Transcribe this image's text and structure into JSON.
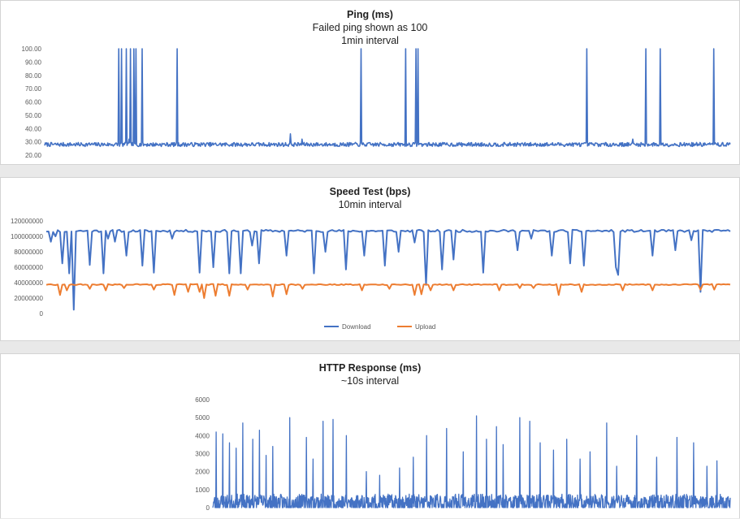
{
  "colors": {
    "download": "#4472C4",
    "upload": "#ED7D31",
    "axis_text": "#595959",
    "grid": "#d9d9d9"
  },
  "chart_data": [
    {
      "type": "line",
      "title": "Ping (ms)",
      "subtitle_lines": [
        "Failed ping shown as 100",
        "1min interval"
      ],
      "ylim": [
        20,
        100
      ],
      "yticks": [
        "100.00",
        "90.00",
        "80.00",
        "70.00",
        "60.00",
        "50.00",
        "40.00",
        "30.00",
        "20.00"
      ],
      "baseline": 28,
      "noise": 1.5,
      "n_points": 1000,
      "spikes": [
        {
          "at": 0.13,
          "value": 100
        },
        {
          "at": 0.134,
          "value": 100
        },
        {
          "at": 0.143,
          "value": 100
        },
        {
          "at": 0.15,
          "value": 100
        },
        {
          "at": 0.156,
          "value": 100
        },
        {
          "at": 0.16,
          "value": 100
        },
        {
          "at": 0.17,
          "value": 100
        },
        {
          "at": 0.232,
          "value": 100
        },
        {
          "at": 0.554,
          "value": 100
        },
        {
          "at": 0.632,
          "value": 100
        },
        {
          "at": 0.65,
          "value": 100
        },
        {
          "at": 0.653,
          "value": 100
        },
        {
          "at": 0.949,
          "value": 100
        },
        {
          "at": 1.052,
          "value": 100
        },
        {
          "at": 1.077,
          "value": 100
        },
        {
          "at": 1.171,
          "value": 100
        }
      ],
      "bumps": [
        {
          "at": 0.148,
          "value": 32
        },
        {
          "at": 0.43,
          "value": 36
        },
        {
          "at": 0.45,
          "value": 32
        },
        {
          "at": 1.03,
          "value": 32
        }
      ],
      "series": [
        {
          "color": "#4472C4"
        }
      ]
    },
    {
      "type": "line",
      "title": "Speed Test (bps)",
      "subtitle_lines": [
        "10min interval"
      ],
      "ylim": [
        0,
        120000000
      ],
      "yticks": [
        "120000000",
        "100000000",
        "80000000",
        "60000000",
        "40000000",
        "20000000",
        "0"
      ],
      "n_points": 300,
      "series": [
        {
          "name": "Download",
          "color": "#4472C4",
          "baseline": 107000000,
          "noise": 1500000,
          "dips": [
            {
              "at": 0.013,
              "value": 93000000
            },
            {
              "at": 0.024,
              "value": 100000000
            },
            {
              "at": 0.04,
              "value": 65000000
            },
            {
              "at": 0.056,
              "value": 52000000
            },
            {
              "at": 0.066,
              "value": 5000000
            },
            {
              "at": 0.104,
              "value": 63000000
            },
            {
              "at": 0.132,
              "value": 52000000
            },
            {
              "at": 0.144,
              "value": 97000000
            },
            {
              "at": 0.16,
              "value": 93000000
            },
            {
              "at": 0.188,
              "value": 75000000
            },
            {
              "at": 0.227,
              "value": 62000000
            },
            {
              "at": 0.25,
              "value": 53000000
            },
            {
              "at": 0.294,
              "value": 97000000
            },
            {
              "at": 0.356,
              "value": 53000000
            },
            {
              "at": 0.39,
              "value": 60000000
            },
            {
              "at": 0.43,
              "value": 52000000
            },
            {
              "at": 0.455,
              "value": 52000000
            },
            {
              "at": 0.48,
              "value": 88000000
            },
            {
              "at": 0.5,
              "value": 65000000
            },
            {
              "at": 0.56,
              "value": 75000000
            },
            {
              "at": 0.625,
              "value": 52000000
            },
            {
              "at": 0.652,
              "value": 80000000
            },
            {
              "at": 0.7,
              "value": 57000000
            },
            {
              "at": 0.745,
              "value": 75000000
            },
            {
              "at": 0.79,
              "value": 62000000
            },
            {
              "at": 0.825,
              "value": 80000000
            },
            {
              "at": 0.86,
              "value": 92000000
            },
            {
              "at": 0.89,
              "value": 37000000
            },
            {
              "at": 0.925,
              "value": 57000000
            },
            {
              "at": 0.955,
              "value": 70000000
            },
            {
              "at": 1.02,
              "value": 53000000
            },
            {
              "at": 1.1,
              "value": 82000000
            },
            {
              "at": 1.136,
              "value": 97000000
            },
            {
              "at": 1.183,
              "value": 75000000
            },
            {
              "at": 1.225,
              "value": 65000000
            },
            {
              "at": 1.256,
              "value": 62000000
            },
            {
              "at": 1.33,
              "value": 60000000
            },
            {
              "at": 1.34,
              "value": 50000000
            },
            {
              "at": 1.42,
              "value": 75000000
            },
            {
              "at": 1.47,
              "value": 82000000
            },
            {
              "at": 1.51,
              "value": 95000000
            },
            {
              "at": 1.53,
              "value": 28000000
            }
          ]
        },
        {
          "name": "Upload",
          "color": "#ED7D31",
          "baseline": 37500000,
          "noise": 700000,
          "dips": [
            {
              "at": 0.03,
              "value": 24000000
            },
            {
              "at": 0.05,
              "value": 30000000
            },
            {
              "at": 0.1,
              "value": 32000000
            },
            {
              "at": 0.14,
              "value": 30000000
            },
            {
              "at": 0.18,
              "value": 33000000
            },
            {
              "at": 0.25,
              "value": 31000000
            },
            {
              "at": 0.3,
              "value": 24000000
            },
            {
              "at": 0.33,
              "value": 28000000
            },
            {
              "at": 0.36,
              "value": 28000000
            },
            {
              "at": 0.37,
              "value": 20000000
            },
            {
              "at": 0.395,
              "value": 23000000
            },
            {
              "at": 0.43,
              "value": 23000000
            },
            {
              "at": 0.47,
              "value": 31000000
            },
            {
              "at": 0.53,
              "value": 22000000
            },
            {
              "at": 0.56,
              "value": 25000000
            },
            {
              "at": 0.6,
              "value": 32000000
            },
            {
              "at": 0.74,
              "value": 30000000
            },
            {
              "at": 0.8,
              "value": 32000000
            },
            {
              "at": 0.86,
              "value": 24000000
            },
            {
              "at": 0.875,
              "value": 25000000
            },
            {
              "at": 0.9,
              "value": 30000000
            },
            {
              "at": 0.955,
              "value": 30000000
            },
            {
              "at": 1.06,
              "value": 30000000
            },
            {
              "at": 1.11,
              "value": 33000000
            },
            {
              "at": 1.14,
              "value": 33000000
            },
            {
              "at": 1.2,
              "value": 24000000
            },
            {
              "at": 1.25,
              "value": 28000000
            },
            {
              "at": 1.35,
              "value": 30000000
            },
            {
              "at": 1.42,
              "value": 30000000
            },
            {
              "at": 1.53,
              "value": 31000000
            },
            {
              "at": 1.56,
              "value": 31000000
            }
          ]
        }
      ],
      "legend": [
        "Download",
        "Upload"
      ],
      "legend_position": "bottom"
    },
    {
      "type": "line",
      "title": "HTTP Response (ms)",
      "subtitle_lines": [
        "~10s interval"
      ],
      "ylim": [
        0,
        6000
      ],
      "yticks": [
        "6000",
        "5000",
        "4000",
        "3000",
        "2000",
        "1000",
        "0"
      ],
      "baseline": 250,
      "noise": 500,
      "n_points": 1400,
      "spikes": [
        {
          "at": 0.01,
          "value": 4200
        },
        {
          "at": 0.03,
          "value": 4100
        },
        {
          "at": 0.05,
          "value": 3600
        },
        {
          "at": 0.07,
          "value": 3300
        },
        {
          "at": 0.09,
          "value": 4700
        },
        {
          "at": 0.12,
          "value": 3800
        },
        {
          "at": 0.14,
          "value": 4300
        },
        {
          "at": 0.16,
          "value": 2900
        },
        {
          "at": 0.18,
          "value": 3400
        },
        {
          "at": 0.23,
          "value": 5000
        },
        {
          "at": 0.28,
          "value": 3900
        },
        {
          "at": 0.3,
          "value": 2700
        },
        {
          "at": 0.33,
          "value": 4800
        },
        {
          "at": 0.36,
          "value": 4900
        },
        {
          "at": 0.4,
          "value": 4000
        },
        {
          "at": 0.46,
          "value": 2000
        },
        {
          "at": 0.5,
          "value": 1800
        },
        {
          "at": 0.56,
          "value": 2200
        },
        {
          "at": 0.6,
          "value": 2800
        },
        {
          "at": 0.64,
          "value": 4000
        },
        {
          "at": 0.7,
          "value": 4400
        },
        {
          "at": 0.75,
          "value": 3100
        },
        {
          "at": 0.79,
          "value": 5100
        },
        {
          "at": 0.82,
          "value": 3800
        },
        {
          "at": 0.85,
          "value": 4500
        },
        {
          "at": 0.87,
          "value": 3500
        },
        {
          "at": 0.92,
          "value": 5000
        },
        {
          "at": 0.95,
          "value": 4800
        },
        {
          "at": 0.98,
          "value": 3600
        },
        {
          "at": 1.02,
          "value": 3200
        },
        {
          "at": 1.06,
          "value": 3800
        },
        {
          "at": 1.1,
          "value": 2700
        },
        {
          "at": 1.13,
          "value": 3100
        },
        {
          "at": 1.18,
          "value": 4700
        },
        {
          "at": 1.21,
          "value": 2300
        },
        {
          "at": 1.27,
          "value": 4000
        },
        {
          "at": 1.33,
          "value": 2800
        },
        {
          "at": 1.39,
          "value": 3900
        },
        {
          "at": 1.44,
          "value": 3600
        },
        {
          "at": 1.48,
          "value": 2300
        },
        {
          "at": 1.51,
          "value": 2600
        }
      ],
      "series": [
        {
          "color": "#4472C4"
        }
      ]
    }
  ]
}
